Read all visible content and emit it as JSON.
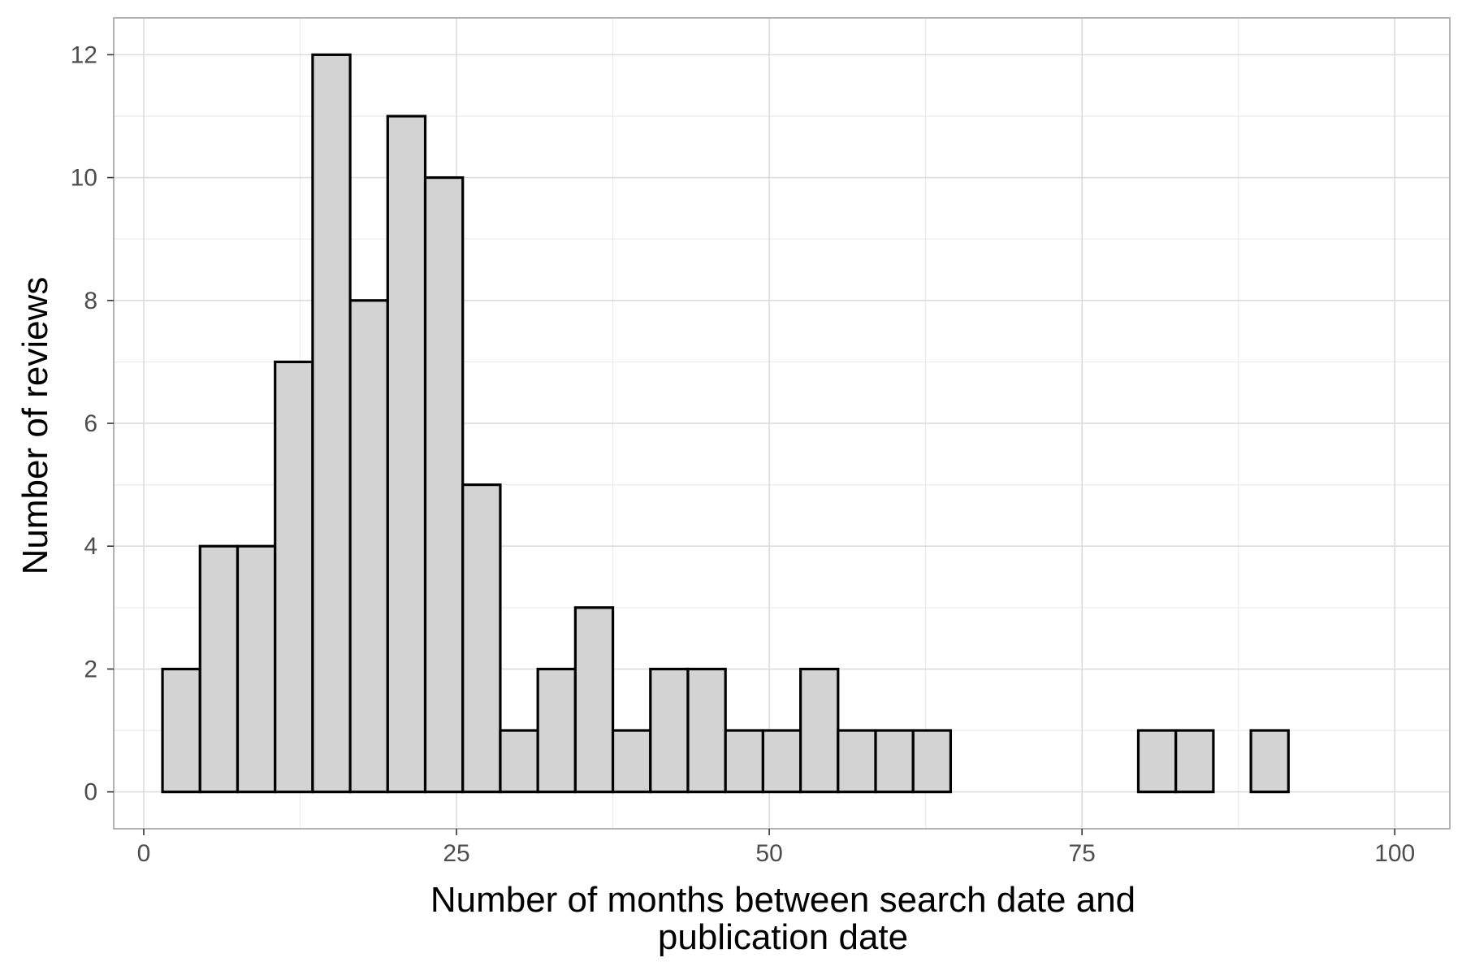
{
  "chart_data": {
    "type": "bar",
    "subtype": "histogram",
    "title": "",
    "xlabel_lines": [
      "Number of months between search date and",
      "publication date"
    ],
    "ylabel": "Number of reviews",
    "xlim": [
      -2.4,
      104.4
    ],
    "ylim": [
      -0.6,
      12.6
    ],
    "x_ticks": [
      0,
      25,
      50,
      75,
      100
    ],
    "y_ticks": [
      0,
      2,
      4,
      6,
      8,
      10,
      12
    ],
    "grid": true,
    "legend": "none",
    "bin_width": 3,
    "bins": [
      {
        "start": 1.5,
        "end": 4.5,
        "count": 2
      },
      {
        "start": 4.5,
        "end": 7.5,
        "count": 4
      },
      {
        "start": 7.5,
        "end": 10.5,
        "count": 4
      },
      {
        "start": 10.5,
        "end": 13.5,
        "count": 7
      },
      {
        "start": 13.5,
        "end": 16.5,
        "count": 12
      },
      {
        "start": 16.5,
        "end": 19.5,
        "count": 8
      },
      {
        "start": 19.5,
        "end": 22.5,
        "count": 11
      },
      {
        "start": 22.5,
        "end": 25.5,
        "count": 10
      },
      {
        "start": 25.5,
        "end": 28.5,
        "count": 5
      },
      {
        "start": 28.5,
        "end": 31.5,
        "count": 1
      },
      {
        "start": 31.5,
        "end": 34.5,
        "count": 2
      },
      {
        "start": 34.5,
        "end": 37.5,
        "count": 3
      },
      {
        "start": 37.5,
        "end": 40.5,
        "count": 1
      },
      {
        "start": 40.5,
        "end": 43.5,
        "count": 2
      },
      {
        "start": 43.5,
        "end": 46.5,
        "count": 2
      },
      {
        "start": 46.5,
        "end": 49.5,
        "count": 1
      },
      {
        "start": 49.5,
        "end": 52.5,
        "count": 1
      },
      {
        "start": 52.5,
        "end": 55.5,
        "count": 2
      },
      {
        "start": 55.5,
        "end": 58.5,
        "count": 1
      },
      {
        "start": 58.5,
        "end": 61.5,
        "count": 1
      },
      {
        "start": 61.5,
        "end": 64.5,
        "count": 1
      },
      {
        "start": 64.5,
        "end": 67.5,
        "count": 0
      },
      {
        "start": 67.5,
        "end": 70.5,
        "count": 0
      },
      {
        "start": 70.5,
        "end": 73.5,
        "count": 0
      },
      {
        "start": 73.5,
        "end": 76.5,
        "count": 0
      },
      {
        "start": 76.5,
        "end": 79.5,
        "count": 0
      },
      {
        "start": 79.5,
        "end": 82.5,
        "count": 1
      },
      {
        "start": 82.5,
        "end": 85.5,
        "count": 1
      },
      {
        "start": 85.5,
        "end": 88.5,
        "count": 0
      },
      {
        "start": 88.5,
        "end": 91.5,
        "count": 1
      },
      {
        "start": 91.5,
        "end": 94.5,
        "count": 0
      },
      {
        "start": 94.5,
        "end": 97.5,
        "count": 0
      }
    ],
    "colors": {
      "bar_fill": "#d3d3d3",
      "bar_stroke": "#000000",
      "grid_major": "#dcdcdc",
      "grid_minor": "#ebebeb",
      "panel_border": "#b3b3b3",
      "tick_text": "#4d4d4d",
      "axis_title_text": "#000000"
    }
  }
}
